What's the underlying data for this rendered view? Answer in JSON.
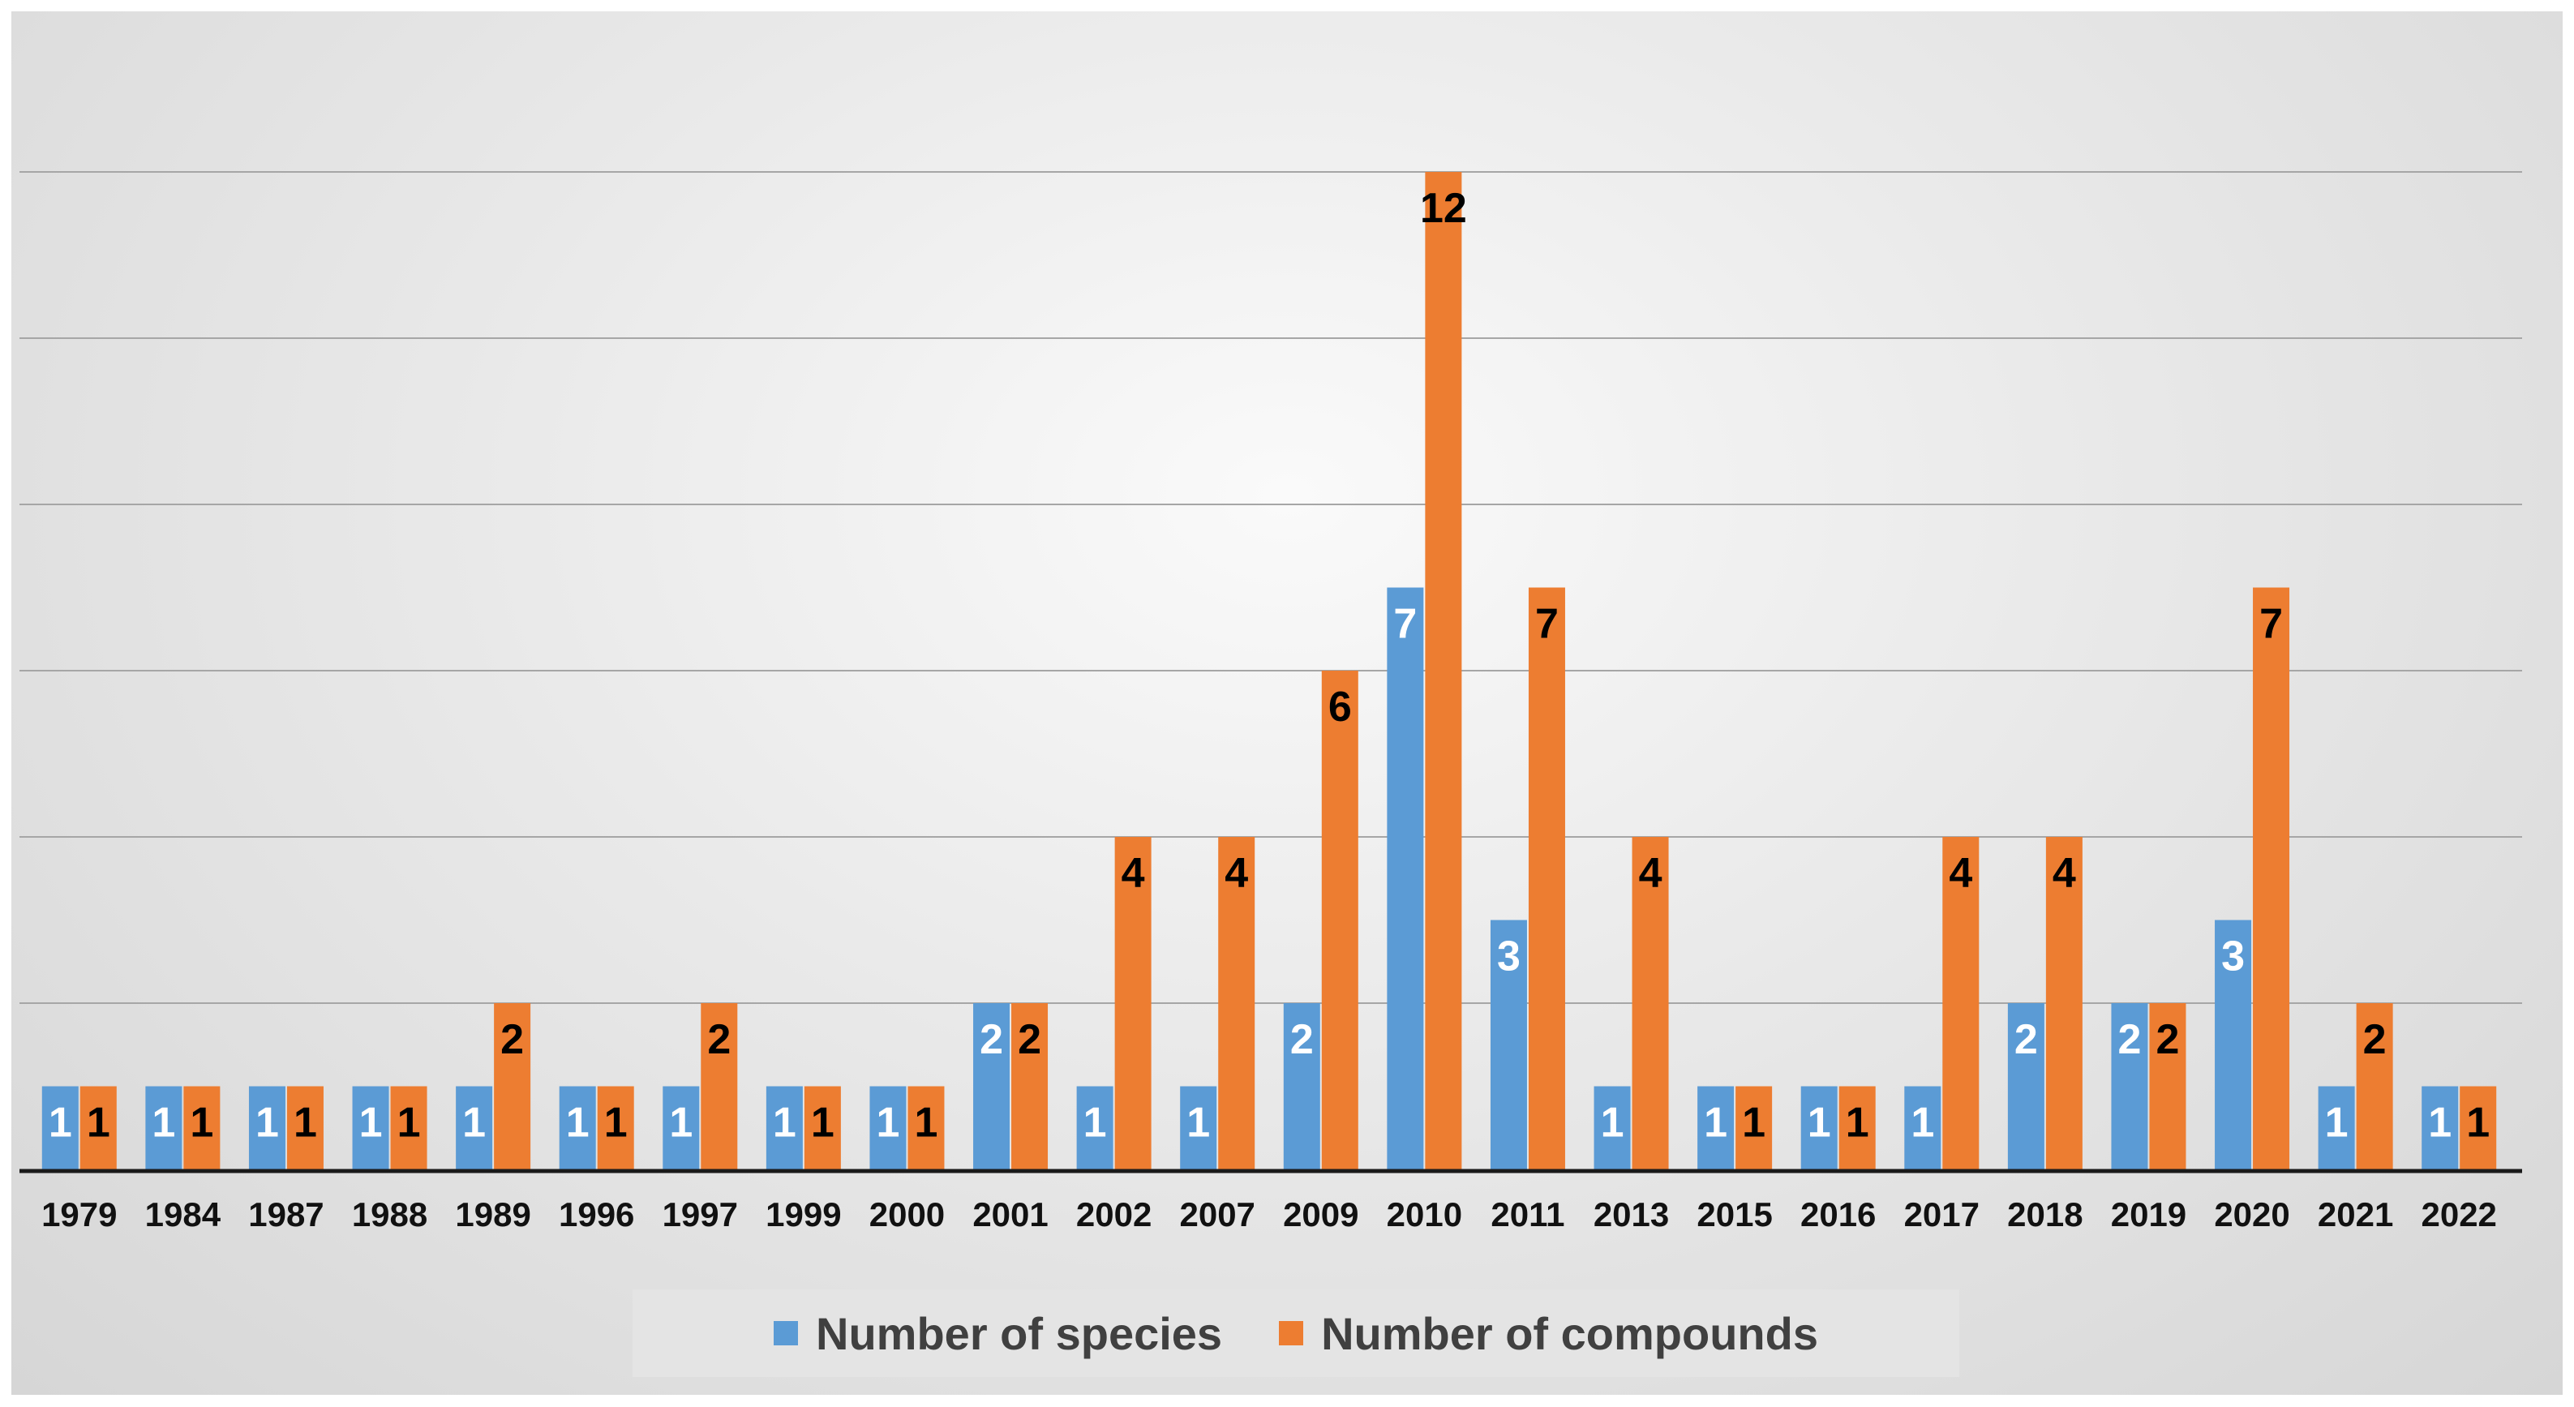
{
  "chart_data": {
    "type": "bar",
    "title": "",
    "xlabel": "",
    "ylabel": "",
    "ylim": [
      0,
      12
    ],
    "grid": true,
    "legend_position": "bottom",
    "categories": [
      "1979",
      "1984",
      "1987",
      "1988",
      "1989",
      "1996",
      "1997",
      "1999",
      "2000",
      "2001",
      "2002",
      "2007",
      "2009",
      "2010",
      "2011",
      "2013",
      "2015",
      "2016",
      "2017",
      "2018",
      "2019",
      "2020",
      "2021",
      "2022"
    ],
    "series": [
      {
        "name": "Number of species",
        "color": "#5b9bd5",
        "label_color": "#ffffff",
        "values": [
          1,
          1,
          1,
          1,
          1,
          1,
          1,
          1,
          1,
          2,
          1,
          1,
          2,
          7,
          3,
          1,
          1,
          1,
          1,
          2,
          2,
          3,
          1,
          1
        ]
      },
      {
        "name": "Number of compounds",
        "color": "#ed7d31",
        "label_color": "#000000",
        "values": [
          1,
          1,
          1,
          1,
          2,
          1,
          2,
          1,
          1,
          2,
          4,
          4,
          6,
          12,
          7,
          4,
          1,
          1,
          4,
          4,
          2,
          7,
          2,
          1
        ]
      }
    ]
  }
}
